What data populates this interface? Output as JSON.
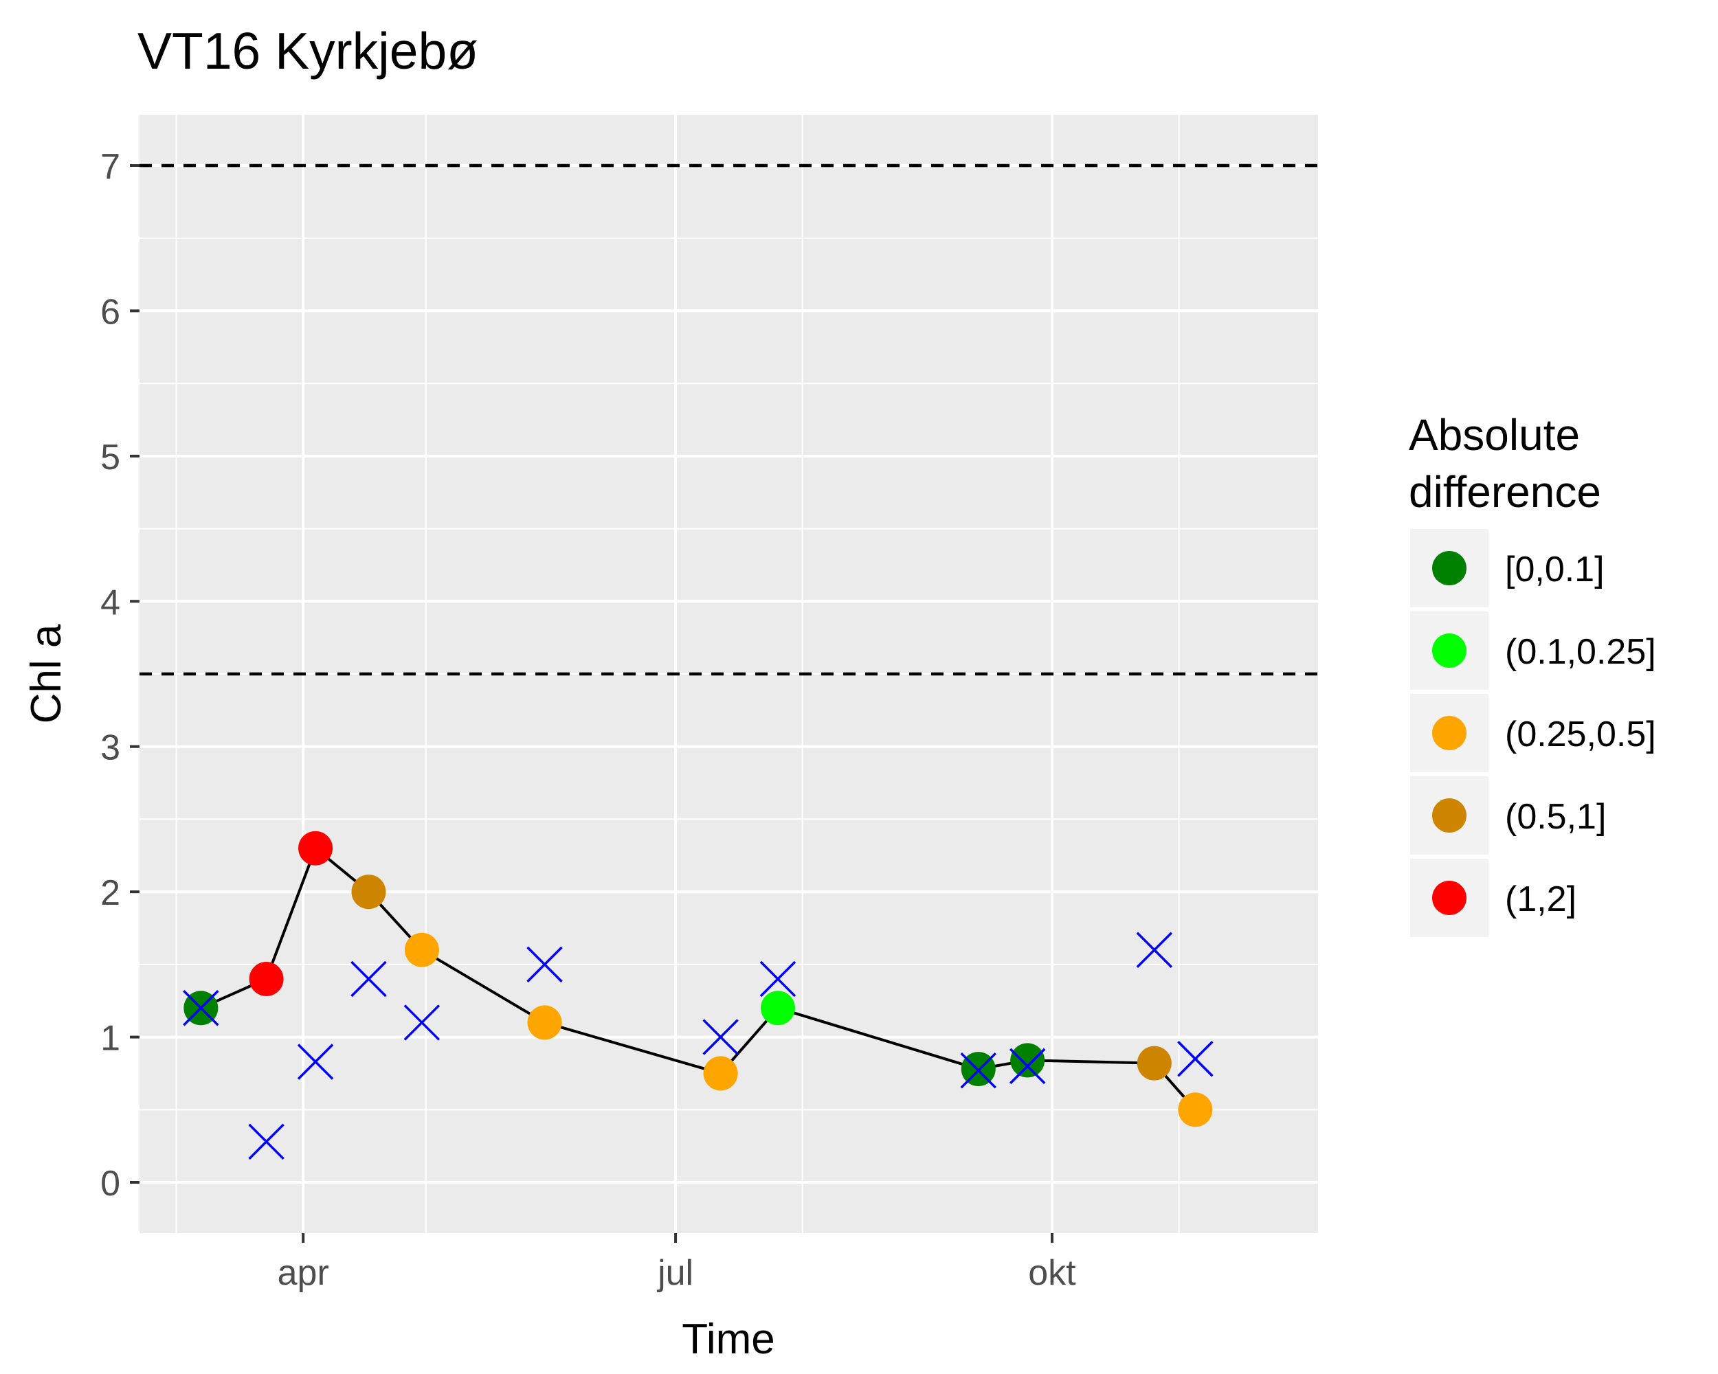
{
  "chart_data": {
    "type": "line",
    "title": "VT16 Kyrkjebø",
    "xlabel": "Time",
    "ylabel": "Chl a",
    "xlim": [
      "2017-02-20",
      "2017-12-05"
    ],
    "ylim": [
      -0.35,
      7.35
    ],
    "x_ticks": [
      {
        "date": "2017-04-01",
        "label": "apr"
      },
      {
        "date": "2017-07-01",
        "label": "jul"
      },
      {
        "date": "2017-10-01",
        "label": "okt"
      }
    ],
    "x_minor": [
      "2017-03-01",
      "2017-05-01",
      "2017-08-01",
      "2017-11-01"
    ],
    "y_ticks": [
      0,
      1,
      2,
      3,
      4,
      5,
      6,
      7
    ],
    "reference_lines": [
      7,
      3.5
    ],
    "series": [
      {
        "kind": "line+points",
        "points": [
          {
            "date": "2017-03-07",
            "value": 1.2,
            "class": "[0,0.1]"
          },
          {
            "date": "2017-03-23",
            "value": 1.4,
            "class": "(1,2]"
          },
          {
            "date": "2017-04-04",
            "value": 2.3,
            "class": "(1,2]"
          },
          {
            "date": "2017-04-17",
            "value": 2.0,
            "class": "(0.5,1]"
          },
          {
            "date": "2017-04-30",
            "value": 1.6,
            "class": "(0.25,0.5]"
          },
          {
            "date": "2017-05-30",
            "value": 1.1,
            "class": "(0.25,0.5]"
          },
          {
            "date": "2017-07-12",
            "value": 0.75,
            "class": "(0.25,0.5]"
          },
          {
            "date": "2017-07-26",
            "value": 1.2,
            "class": "(0.1,0.25]"
          },
          {
            "date": "2017-09-13",
            "value": 0.78,
            "class": "[0,0.1]"
          },
          {
            "date": "2017-09-25",
            "value": 0.84,
            "class": "[0,0.1]"
          },
          {
            "date": "2017-10-26",
            "value": 0.82,
            "class": "(0.5,1]"
          },
          {
            "date": "2017-11-05",
            "value": 0.5,
            "class": "(0.25,0.5]"
          }
        ]
      },
      {
        "kind": "x-markers",
        "color": "#0000ff",
        "points": [
          {
            "date": "2017-03-07",
            "value": 1.2
          },
          {
            "date": "2017-03-23",
            "value": 0.28
          },
          {
            "date": "2017-04-04",
            "value": 0.83
          },
          {
            "date": "2017-04-17",
            "value": 1.4
          },
          {
            "date": "2017-04-30",
            "value": 1.1
          },
          {
            "date": "2017-05-30",
            "value": 1.5
          },
          {
            "date": "2017-07-12",
            "value": 1.0
          },
          {
            "date": "2017-07-26",
            "value": 1.4
          },
          {
            "date": "2017-09-13",
            "value": 0.77
          },
          {
            "date": "2017-09-25",
            "value": 0.8
          },
          {
            "date": "2017-10-26",
            "value": 1.6
          },
          {
            "date": "2017-11-05",
            "value": 0.85
          }
        ]
      }
    ],
    "legend": {
      "title_lines": [
        "Absolute",
        "difference"
      ],
      "position": "right",
      "entries": [
        {
          "label": "[0,0.1]",
          "color": "#008000"
        },
        {
          "label": "(0.1,0.25]",
          "color": "#00ff00"
        },
        {
          "label": "(0.25,0.5]",
          "color": "#ffa500"
        },
        {
          "label": "(0.5,1]",
          "color": "#cd8500"
        },
        {
          "label": "(1,2]",
          "color": "#ff0000"
        }
      ]
    },
    "grid": true,
    "panel_background": "#ebebeb"
  }
}
